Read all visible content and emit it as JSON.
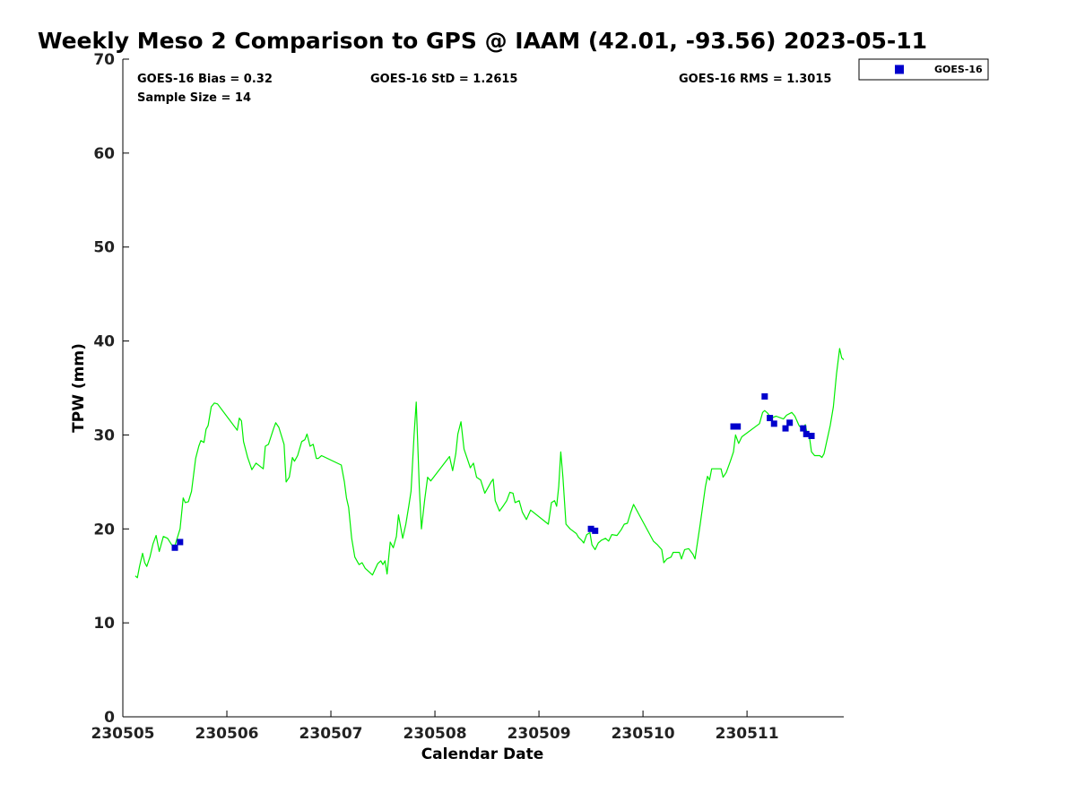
{
  "chart_data": {
    "type": "scatter",
    "title": "Weekly Meso 2 Comparison to GPS @ IAAM (42.01, -93.56) 2023-05-11",
    "xlabel": "Calendar Date",
    "ylabel": "TPW (mm)",
    "xlim": [
      230505.0,
      230511.93
    ],
    "ylim": [
      0,
      70
    ],
    "x_ticks": [
      230505,
      230506,
      230507,
      230508,
      230509,
      230510,
      230511
    ],
    "x_tick_labels": [
      "230505",
      "230506",
      "230507",
      "230508",
      "230509",
      "230510",
      "230511"
    ],
    "y_ticks": [
      0,
      10,
      20,
      30,
      40,
      50,
      60,
      70
    ],
    "y_tick_labels": [
      "0",
      "10",
      "20",
      "30",
      "40",
      "50",
      "60",
      "70"
    ],
    "grid": false,
    "legend_position": "top-right, outside plot area",
    "stats": {
      "bias": "GOES-16 Bias = 0.32",
      "sample_size": "Sample Size = 14",
      "std": "GOES-16 StD = 1.2615",
      "rms": "GOES-16 RMS = 1.3015"
    },
    "series": [
      {
        "name": "GOES-16",
        "type": "scatter",
        "color": "#0000cc",
        "marker": "square",
        "points": [
          [
            230505.5,
            18.0
          ],
          [
            230505.55,
            18.6
          ],
          [
            230509.5,
            20.0
          ],
          [
            230509.54,
            19.8
          ],
          [
            230510.87,
            30.9
          ],
          [
            230510.91,
            30.9
          ],
          [
            230511.17,
            34.1
          ],
          [
            230511.22,
            31.8
          ],
          [
            230511.26,
            31.2
          ],
          [
            230511.37,
            30.7
          ],
          [
            230511.41,
            31.3
          ],
          [
            230511.54,
            30.7
          ],
          [
            230511.57,
            30.1
          ],
          [
            230511.62,
            29.9
          ]
        ]
      },
      {
        "type": "line",
        "color": "#00ee00",
        "points": [
          [
            230505.12,
            15.0
          ],
          [
            230505.14,
            14.8
          ],
          [
            230505.16,
            16.0
          ],
          [
            230505.19,
            17.4
          ],
          [
            230505.21,
            16.4
          ],
          [
            230505.23,
            16.0
          ],
          [
            230505.26,
            17.0
          ],
          [
            230505.29,
            18.4
          ],
          [
            230505.32,
            19.3
          ],
          [
            230505.35,
            17.6
          ],
          [
            230505.39,
            19.2
          ],
          [
            230505.43,
            19.0
          ],
          [
            230505.47,
            18.3
          ],
          [
            230505.5,
            18.2
          ],
          [
            230505.55,
            20.0
          ],
          [
            230505.58,
            23.3
          ],
          [
            230505.6,
            22.8
          ],
          [
            230505.63,
            22.9
          ],
          [
            230505.66,
            24.0
          ],
          [
            230505.7,
            27.5
          ],
          [
            230505.73,
            28.8
          ],
          [
            230505.75,
            29.4
          ],
          [
            230505.78,
            29.2
          ],
          [
            230505.8,
            30.6
          ],
          [
            230505.82,
            31.0
          ],
          [
            230505.85,
            33.0
          ],
          [
            230505.88,
            33.4
          ],
          [
            230505.91,
            33.3
          ],
          [
            230506.1,
            30.5
          ],
          [
            230506.12,
            31.8
          ],
          [
            230506.14,
            31.5
          ],
          [
            230506.16,
            29.3
          ],
          [
            230506.2,
            27.6
          ],
          [
            230506.24,
            26.3
          ],
          [
            230506.28,
            27.0
          ],
          [
            230506.35,
            26.4
          ],
          [
            230506.37,
            28.8
          ],
          [
            230506.4,
            29.0
          ],
          [
            230506.45,
            30.7
          ],
          [
            230506.47,
            31.3
          ],
          [
            230506.5,
            30.8
          ],
          [
            230506.55,
            29.0
          ],
          [
            230506.57,
            25.0
          ],
          [
            230506.6,
            25.5
          ],
          [
            230506.63,
            27.6
          ],
          [
            230506.65,
            27.2
          ],
          [
            230506.68,
            27.8
          ],
          [
            230506.72,
            29.3
          ],
          [
            230506.75,
            29.5
          ],
          [
            230506.77,
            30.1
          ],
          [
            230506.8,
            28.8
          ],
          [
            230506.83,
            29.0
          ],
          [
            230506.86,
            27.5
          ],
          [
            230506.88,
            27.5
          ],
          [
            230506.91,
            27.8
          ],
          [
            230507.1,
            26.8
          ],
          [
            230507.13,
            25.0
          ],
          [
            230507.15,
            23.3
          ],
          [
            230507.17,
            22.3
          ],
          [
            230507.2,
            19.0
          ],
          [
            230507.23,
            17.0
          ],
          [
            230507.27,
            16.2
          ],
          [
            230507.3,
            16.4
          ],
          [
            230507.33,
            15.8
          ],
          [
            230507.4,
            15.1
          ],
          [
            230507.45,
            16.3
          ],
          [
            230507.48,
            16.6
          ],
          [
            230507.5,
            16.2
          ],
          [
            230507.52,
            16.6
          ],
          [
            230507.54,
            15.2
          ],
          [
            230507.57,
            18.6
          ],
          [
            230507.6,
            18.0
          ],
          [
            230507.63,
            19.2
          ],
          [
            230507.65,
            21.5
          ],
          [
            230507.69,
            19.0
          ],
          [
            230507.72,
            20.5
          ],
          [
            230507.75,
            22.5
          ],
          [
            230507.77,
            24.0
          ],
          [
            230507.8,
            30.0
          ],
          [
            230507.82,
            33.5
          ],
          [
            230507.85,
            24.5
          ],
          [
            230507.87,
            20.0
          ],
          [
            230507.9,
            23.0
          ],
          [
            230507.93,
            25.5
          ],
          [
            230507.96,
            25.1
          ],
          [
            230508.14,
            27.7
          ],
          [
            230508.17,
            26.2
          ],
          [
            230508.2,
            28.0
          ],
          [
            230508.22,
            30.1
          ],
          [
            230508.25,
            31.4
          ],
          [
            230508.28,
            28.5
          ],
          [
            230508.31,
            27.5
          ],
          [
            230508.34,
            26.5
          ],
          [
            230508.37,
            27.0
          ],
          [
            230508.4,
            25.5
          ],
          [
            230508.44,
            25.2
          ],
          [
            230508.48,
            23.8
          ],
          [
            230508.54,
            25.0
          ],
          [
            230508.56,
            25.3
          ],
          [
            230508.58,
            23.0
          ],
          [
            230508.62,
            21.9
          ],
          [
            230508.66,
            22.5
          ],
          [
            230508.69,
            23.0
          ],
          [
            230508.72,
            23.9
          ],
          [
            230508.75,
            23.8
          ],
          [
            230508.77,
            22.8
          ],
          [
            230508.81,
            23.0
          ],
          [
            230508.84,
            21.8
          ],
          [
            230508.88,
            21.0
          ],
          [
            230508.92,
            22.0
          ],
          [
            230509.09,
            20.5
          ],
          [
            230509.12,
            22.8
          ],
          [
            230509.15,
            23.0
          ],
          [
            230509.17,
            22.4
          ],
          [
            230509.19,
            24.5
          ],
          [
            230509.21,
            28.2
          ],
          [
            230509.23,
            25.5
          ],
          [
            230509.26,
            20.5
          ],
          [
            230509.3,
            20.0
          ],
          [
            230509.36,
            19.5
          ],
          [
            230509.38,
            19.1
          ],
          [
            230509.41,
            18.8
          ],
          [
            230509.43,
            18.5
          ],
          [
            230509.46,
            19.4
          ],
          [
            230509.49,
            19.6
          ],
          [
            230509.51,
            18.3
          ],
          [
            230509.54,
            17.8
          ],
          [
            230509.57,
            18.5
          ],
          [
            230509.6,
            18.8
          ],
          [
            230509.64,
            19.0
          ],
          [
            230509.67,
            18.7
          ],
          [
            230509.7,
            19.4
          ],
          [
            230509.75,
            19.3
          ],
          [
            230509.79,
            19.9
          ],
          [
            230509.82,
            20.5
          ],
          [
            230509.85,
            20.6
          ],
          [
            230509.88,
            21.7
          ],
          [
            230509.91,
            22.6
          ],
          [
            230510.1,
            18.7
          ],
          [
            230510.14,
            18.3
          ],
          [
            230510.18,
            17.8
          ],
          [
            230510.2,
            16.4
          ],
          [
            230510.23,
            16.8
          ],
          [
            230510.27,
            17.0
          ],
          [
            230510.29,
            17.5
          ],
          [
            230510.35,
            17.5
          ],
          [
            230510.37,
            16.8
          ],
          [
            230510.4,
            17.8
          ],
          [
            230510.44,
            17.9
          ],
          [
            230510.48,
            17.3
          ],
          [
            230510.5,
            16.8
          ],
          [
            230510.55,
            20.5
          ],
          [
            230510.6,
            24.5
          ],
          [
            230510.62,
            25.6
          ],
          [
            230510.64,
            25.2
          ],
          [
            230510.66,
            26.4
          ],
          [
            230510.75,
            26.4
          ],
          [
            230510.77,
            25.5
          ],
          [
            230510.8,
            26.0
          ],
          [
            230510.84,
            27.2
          ],
          [
            230510.87,
            28.2
          ],
          [
            230510.89,
            30.0
          ],
          [
            230510.92,
            29.1
          ],
          [
            230510.95,
            29.8
          ],
          [
            230511.12,
            31.2
          ],
          [
            230511.15,
            32.4
          ],
          [
            230511.17,
            32.6
          ],
          [
            230511.2,
            32.3
          ],
          [
            230511.23,
            31.8
          ],
          [
            230511.28,
            32.0
          ],
          [
            230511.35,
            31.7
          ],
          [
            230511.38,
            32.1
          ],
          [
            230511.43,
            32.4
          ],
          [
            230511.46,
            32.0
          ],
          [
            230511.5,
            31.0
          ],
          [
            230511.53,
            30.6
          ],
          [
            230511.56,
            31.1
          ],
          [
            230511.58,
            30.0
          ],
          [
            230511.6,
            29.8
          ],
          [
            230511.62,
            28.2
          ],
          [
            230511.65,
            27.8
          ],
          [
            230511.7,
            27.8
          ],
          [
            230511.72,
            27.6
          ],
          [
            230511.74,
            28.0
          ],
          [
            230511.8,
            31.0
          ],
          [
            230511.83,
            33.0
          ],
          [
            230511.86,
            36.5
          ],
          [
            230511.89,
            39.2
          ],
          [
            230511.91,
            38.2
          ],
          [
            230511.93,
            38.0
          ]
        ]
      }
    ]
  }
}
